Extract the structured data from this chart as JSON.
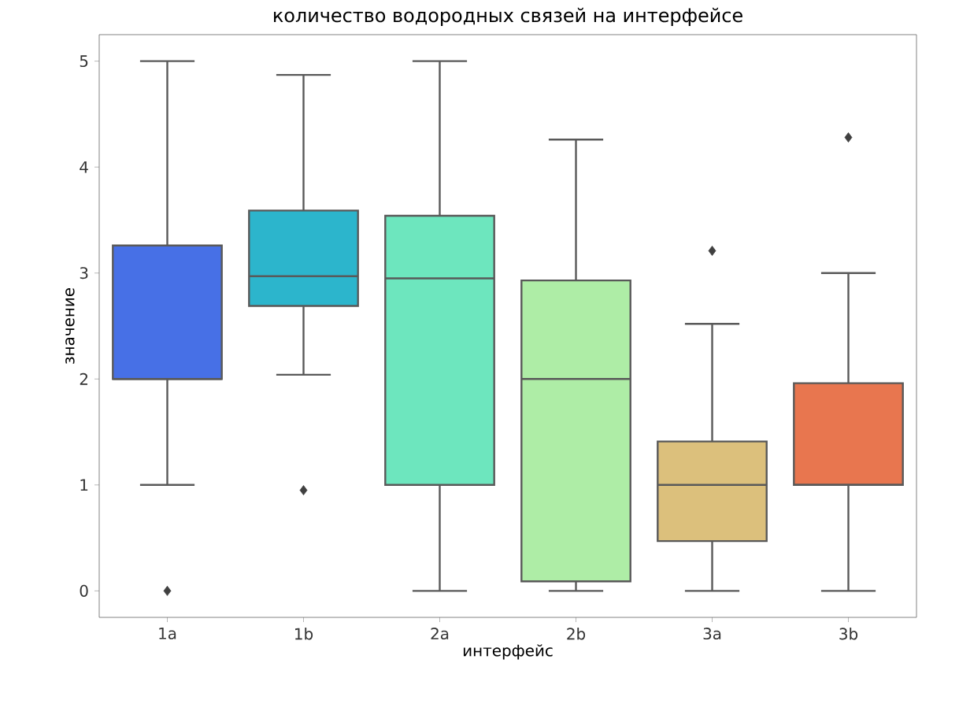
{
  "chart_data": {
    "type": "box",
    "title": "количество водородных связей на интерфейсе",
    "xlabel": "интерфейс",
    "ylabel": "значение",
    "categories": [
      "1a",
      "1b",
      "2a",
      "2b",
      "3a",
      "3b"
    ],
    "boxes": [
      {
        "low": 1.0,
        "q1": 2.0,
        "median": 2.0,
        "q3": 3.26,
        "high": 5.0,
        "outliers": [
          0.0
        ]
      },
      {
        "low": 2.04,
        "q1": 2.69,
        "median": 2.97,
        "q3": 3.59,
        "high": 4.87,
        "outliers": [
          0.95
        ]
      },
      {
        "low": 0.0,
        "q1": 1.0,
        "median": 2.95,
        "q3": 3.54,
        "high": 5.0
      },
      {
        "low": 0.0,
        "q1": 0.09,
        "median": 2.0,
        "q3": 2.93,
        "high": 4.26
      },
      {
        "low": 0.0,
        "q1": 0.47,
        "median": 1.0,
        "q3": 1.41,
        "high": 2.52,
        "outliers": [
          3.21
        ]
      },
      {
        "low": 0.0,
        "q1": 1.0,
        "median": 1.0,
        "q3": 1.96,
        "high": 3.0,
        "outliers": [
          4.28
        ]
      }
    ],
    "colors": [
      "#4770e6",
      "#2cb5cc",
      "#6de6be",
      "#aeeda6",
      "#dcc07c",
      "#e8764f"
    ],
    "ylim": [
      -0.25,
      5.25
    ],
    "yticks": [
      0,
      1,
      2,
      3,
      4,
      5
    ]
  }
}
